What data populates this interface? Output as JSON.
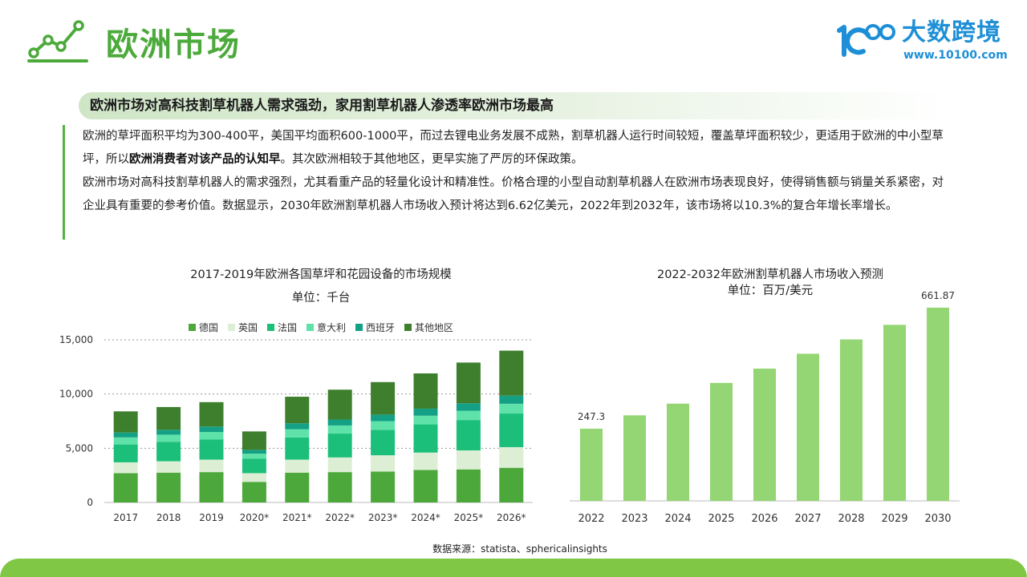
{
  "header": {
    "title": "欧洲市场",
    "logo_name": "大数跨境",
    "logo_url": "www.10100.com",
    "logo_mark_text": "100"
  },
  "subheading": "欧洲市场对高科技割草机器人需求强劲，家用割草机器人渗透率欧洲市场最高",
  "body": {
    "p1_pre": "欧洲的草坪面积平均为300-400平，美国平均面积600-1000平，而过去锂电业务发展不成熟，割草机器人运行时间较短，覆盖草坪面积较少，更适用于欧洲的中小型草坪，所以",
    "p1_bold": "欧洲消费者对该产品的认知早",
    "p1_post": "。其次欧洲相较于其他地区，更早实施了严厉的环保政策。",
    "p2": "欧洲市场对高科技割草机器人的需求强烈，尤其看重产品的轻量化设计和精准性。价格合理的小型自动割草机器人在欧洲市场表现良好，使得销售额与销量关系紧密，对企业具有重要的参考价值。数据显示，2030年欧洲割草机器人市场收入预计将达到6.62亿美元，2022年到2032年，该市场将以10.3%的复合年增长率增长。"
  },
  "footer": {
    "source": "数据来源：statista、sphericalinsights"
  },
  "colors": {
    "brand_green": "#4caa3c",
    "logo_blue": "#1e8fd6",
    "band": "#7fc745"
  },
  "chart_data": [
    {
      "type": "bar",
      "stacked": true,
      "title": "2017-2019年欧洲各国草坪和花园设备的市场规模",
      "unit": "单位：千台",
      "categories": [
        "2017",
        "2018",
        "2019",
        "2020*",
        "2021*",
        "2022*",
        "2023*",
        "2024*",
        "2025*",
        "2026*"
      ],
      "series": [
        {
          "name": "德国",
          "color": "#4da83b",
          "values": [
            2700,
            2750,
            2800,
            1900,
            2750,
            2800,
            2850,
            3000,
            3050,
            3200
          ]
        },
        {
          "name": "英国",
          "color": "#dcefd4",
          "values": [
            1000,
            1050,
            1150,
            800,
            1200,
            1350,
            1500,
            1600,
            1750,
            1900
          ]
        },
        {
          "name": "法国",
          "color": "#1cbf7a",
          "values": [
            1650,
            1800,
            1850,
            1350,
            2050,
            2200,
            2350,
            2600,
            2800,
            3100
          ]
        },
        {
          "name": "意大利",
          "color": "#5ee2aa",
          "values": [
            650,
            650,
            700,
            450,
            750,
            750,
            800,
            800,
            850,
            900
          ]
        },
        {
          "name": "西班牙",
          "color": "#13a085",
          "values": [
            450,
            450,
            500,
            350,
            550,
            550,
            600,
            650,
            700,
            750
          ]
        },
        {
          "name": "其他地区",
          "color": "#3d7f2c",
          "values": [
            1950,
            2100,
            2250,
            1700,
            2450,
            2750,
            3000,
            3250,
            3750,
            4150
          ]
        }
      ],
      "yticks": [
        0,
        5000,
        10000,
        15000
      ],
      "ytick_labels": [
        "0",
        "5,000",
        "10,000",
        "15,000"
      ],
      "ylim": [
        0,
        15000
      ],
      "legend": "top",
      "grid": "horizontal dotted"
    },
    {
      "type": "bar",
      "title": "2022-2032年欧洲割草机器人市场收入预测",
      "unit": "单位：百万/美元",
      "categories": [
        "2022",
        "2023",
        "2024",
        "2025",
        "2026",
        "2027",
        "2028",
        "2029",
        "2030"
      ],
      "values": [
        247.3,
        293.0,
        333.0,
        404.0,
        453.0,
        504.0,
        553.0,
        603.0,
        661.87
      ],
      "data_labels": [
        "247.3",
        "",
        "",
        "",
        "",
        "",
        "",
        "",
        "661.87"
      ],
      "color": "#93d673",
      "ylim": [
        0,
        700
      ],
      "grid": false
    }
  ]
}
